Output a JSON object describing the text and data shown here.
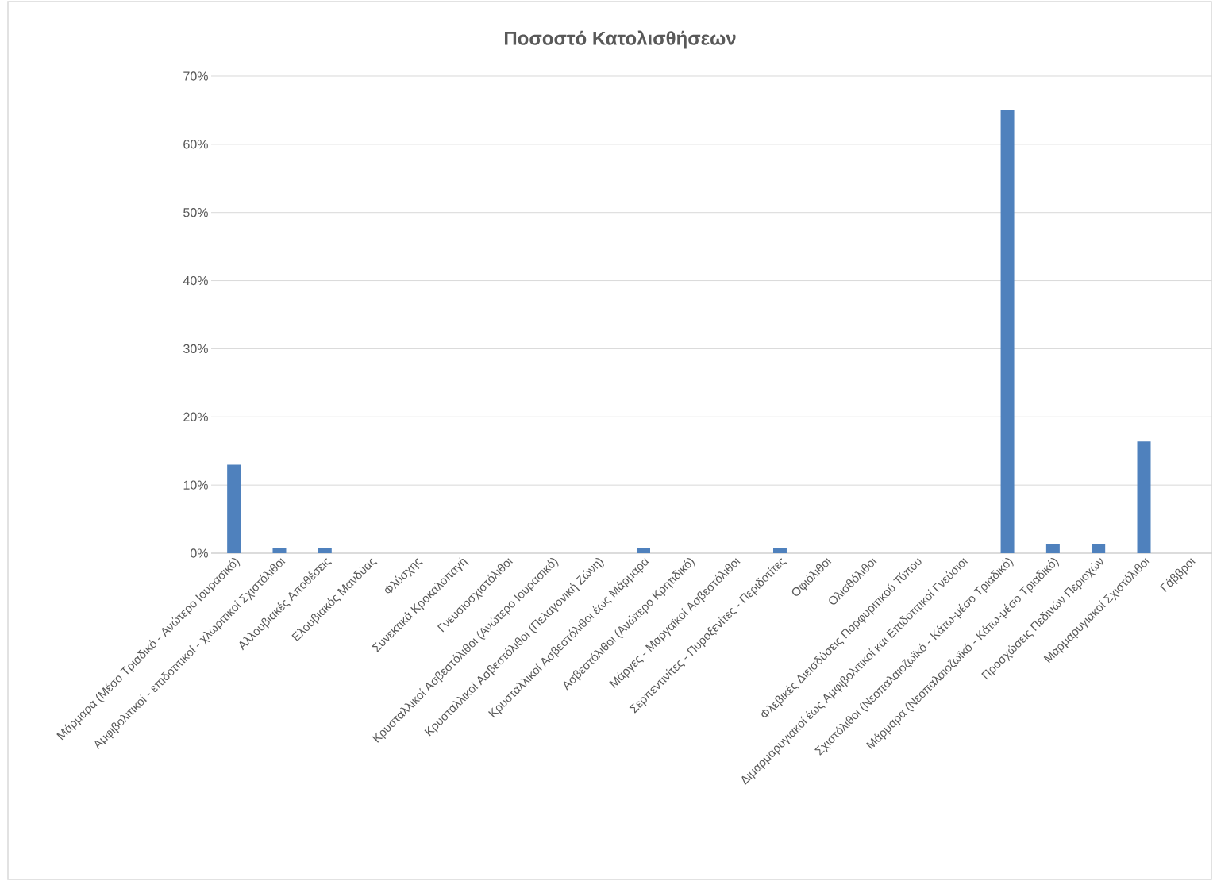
{
  "chart_data": {
    "type": "bar",
    "title": "Ποσοστό Κατολισθήσεων",
    "categories": [
      "Μάρμαρα (Μέσο Τριαδικό - Ανώτερο Ιουρασικό)",
      "Αμφιβολιτικοί - επιδοτιτικοί - χλωριτικοί Σχιστόλιθοι",
      "Αλλουβιακές Αποθέσεις",
      "Ελουβιακός Μανδύας",
      "Φλύσχης",
      "Συνεκτικά Κροκαλοπαγή",
      "Γνευσιοσχιστόλιθοι",
      "Κρυσταλλικοί Ασβεστόλιθοι (Ανώτερο Ιουρασικό)",
      "Κρυσταλλικοί Ασβεστόλιθοι (Πελαγονική Ζώνη)",
      "Κρυσταλλικοί Ασβεστόλιθοι έως Μάρμαρα",
      "Ασβεστόλιθοι (Ανώτερο Κρητιδικό)",
      "Μάργες - Μαργαϊκοί Ασβεστόλιθοι",
      "Σερπεντινίτες - Πυροξενίτες - Περιδοτίτες",
      "Οφιόλιθοι",
      "Ολισθόλιθοι",
      "Φλεβικές Διεισδύσεις Πορφυριτικού Τύπου",
      "Διμαρμαρυγιακοί έως Αμφιβολιτικοί και Επιδοτιτικοί Γνεύσιοι",
      "Σχιστόλιθοι  (Νεοπαλαιοζωϊκό - Κάτω-μέσο Τριαδικό)",
      "Μάρμαρα (Νεοπαλαιοζωϊκό - Κάτω-μέσο Τριαδικό)",
      "Προσχώσεις Πεδινών Περιοχών",
      "Μαρμαρυγιακοί Σχιστόλιθοι",
      "Γάββροι"
    ],
    "values": [
      13.0,
      0.7,
      0.7,
      0,
      0,
      0,
      0,
      0,
      0,
      0.7,
      0,
      0,
      0.7,
      0,
      0,
      0,
      0,
      65.1,
      1.3,
      1.3,
      16.4,
      0
    ],
    "color": "#4f81bd",
    "ylim": [
      0,
      70
    ],
    "yticks": [
      {
        "value": 0,
        "label": "0%"
      },
      {
        "value": 10,
        "label": "10%"
      },
      {
        "value": 20,
        "label": "20%"
      },
      {
        "value": 30,
        "label": "30%"
      },
      {
        "value": 40,
        "label": "40%"
      },
      {
        "value": 50,
        "label": "50%"
      },
      {
        "value": 60,
        "label": "60%"
      },
      {
        "value": 70,
        "label": "70%"
      }
    ],
    "grid": "y"
  }
}
